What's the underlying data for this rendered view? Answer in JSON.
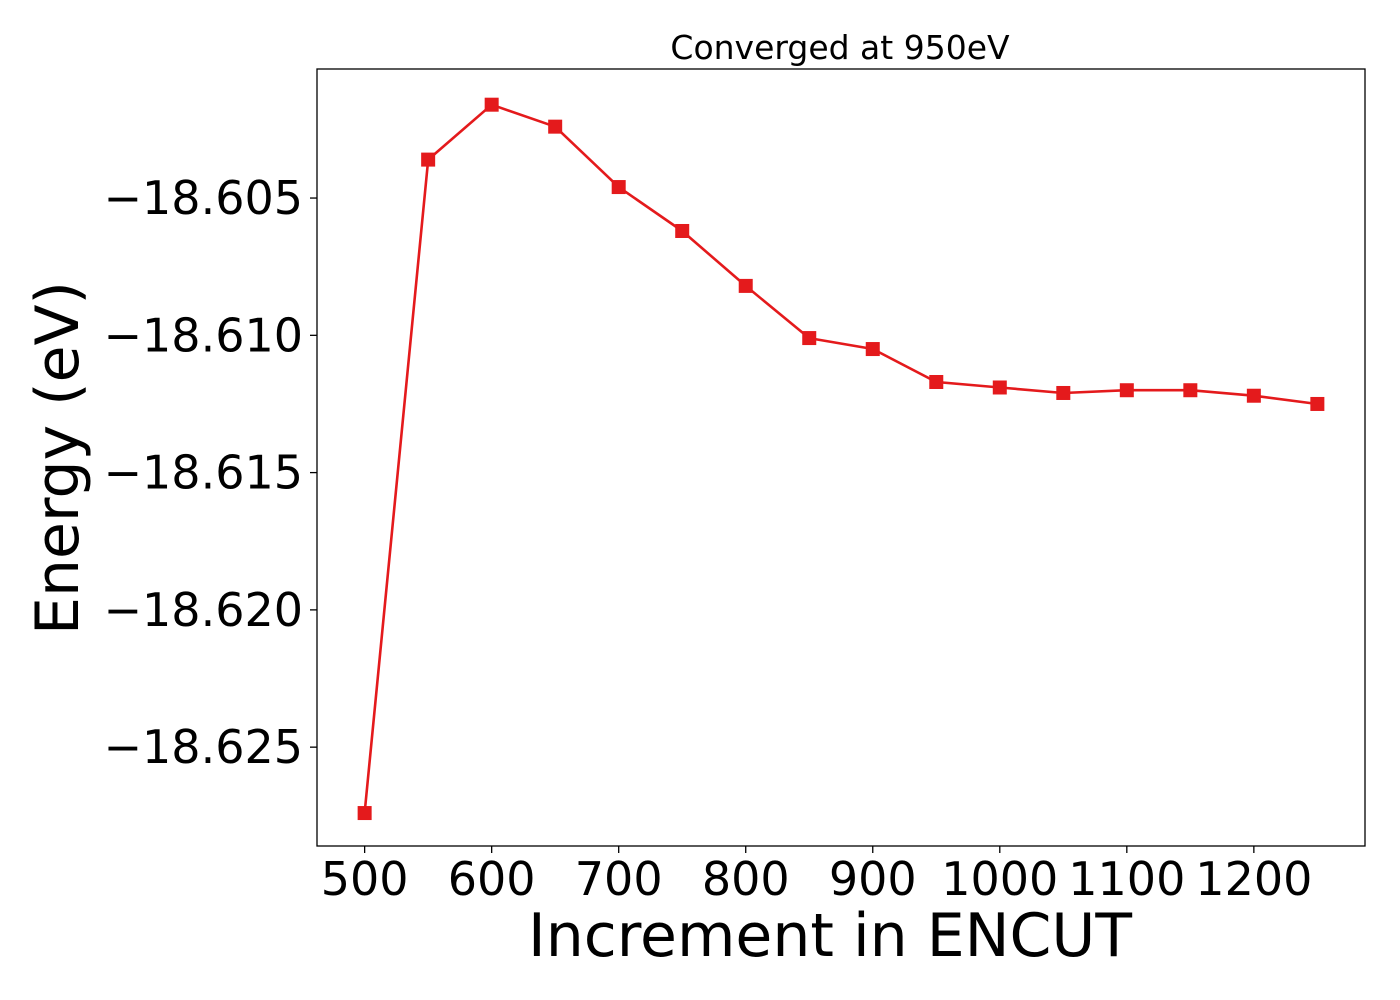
{
  "chart_data": {
    "type": "line",
    "title": "Converged at 950eV",
    "xlabel": "Increment in ENCUT",
    "ylabel": "Energy (eV)",
    "x": [
      500,
      550,
      600,
      650,
      700,
      750,
      800,
      850,
      900,
      950,
      1000,
      1050,
      1100,
      1150,
      1200,
      1250
    ],
    "series": [
      {
        "values": [
          -18.6274,
          -18.6036,
          -18.6016,
          -18.6024,
          -18.6046,
          -18.6062,
          -18.6082,
          -18.6101,
          -18.6105,
          -18.6117,
          -18.6119,
          -18.6121,
          -18.612,
          -18.612,
          -18.6122,
          -18.6125
        ],
        "color": "#e41a1c",
        "marker": "square"
      }
    ],
    "xticks": [
      500,
      600,
      700,
      800,
      900,
      1000,
      1100,
      1200
    ],
    "xtick_labels": [
      "500",
      "600",
      "700",
      "800",
      "900",
      "1000",
      "1100",
      "1200"
    ],
    "yticks": [
      -18.605,
      -18.61,
      -18.615,
      -18.62,
      -18.625
    ],
    "ytick_labels": [
      "−18.605",
      "−18.610",
      "−18.615",
      "−18.620",
      "−18.625"
    ],
    "xlim": [
      462.5,
      1287.5
    ],
    "ylim": [
      -18.6286,
      -18.6003
    ],
    "grid": false,
    "legend": "none"
  }
}
